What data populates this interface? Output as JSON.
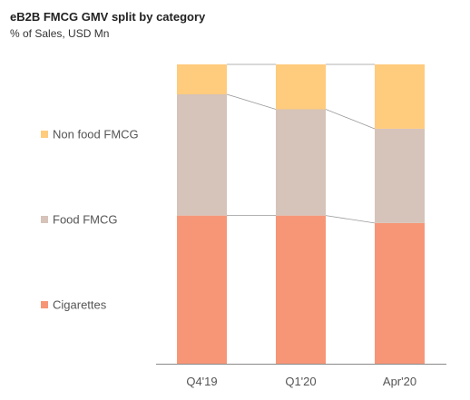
{
  "chart_data": {
    "type": "bar",
    "stacked": true,
    "normalized": true,
    "title": "eB2B FMCG GMV split by category",
    "subtitle": "% of Sales, USD Mn",
    "categories": [
      "Q4'19",
      "Q1'20",
      "Apr'20"
    ],
    "series": [
      {
        "name": "Cigarettes",
        "color": "#F79677",
        "values": [
          49.5,
          49.5,
          47
        ]
      },
      {
        "name": "Food FMCG",
        "color": "#D6C3B9",
        "values": [
          40.5,
          35.5,
          31.5
        ]
      },
      {
        "name": "Non food FMCG",
        "color": "#FFCB7D",
        "values": [
          10,
          15,
          21.5
        ]
      }
    ],
    "legend_position": "left",
    "ylim": [
      0,
      100
    ],
    "connector_lines": true
  }
}
